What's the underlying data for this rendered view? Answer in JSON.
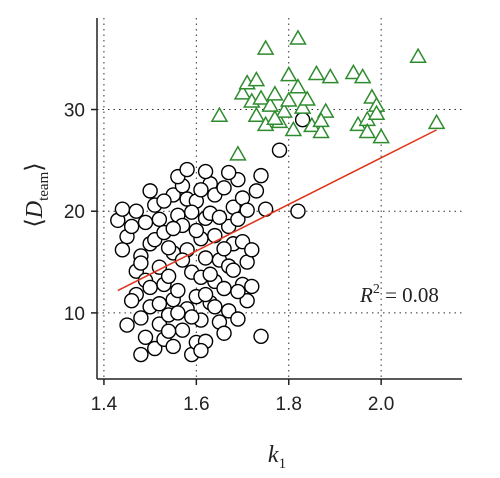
{
  "chart_data": {
    "type": "scatter",
    "xlabel": {
      "base": "k",
      "sub": "1"
    },
    "ylabel": {
      "base": "D",
      "sub": "team",
      "open": "⟨",
      "close": "⟩"
    },
    "xlim": [
      1.385,
      2.175
    ],
    "ylim": [
      3.5,
      39.0
    ],
    "xticks": [
      1.4,
      1.6,
      1.8,
      2.0
    ],
    "xtick_labels": [
      "1.4",
      "1.6",
      "1.8",
      "2.0"
    ],
    "yticks": [
      10,
      20,
      30
    ],
    "ytick_labels": [
      "10",
      "20",
      "30"
    ],
    "grid": "dotted",
    "annotation": {
      "base": "R",
      "sup": "2",
      "text": " = 0.08"
    },
    "colors": {
      "circles": "#000000",
      "triangles": "#2e8b2e",
      "fit": "#e0341a",
      "axes": "#222222"
    },
    "fit_line": {
      "x": [
        1.43,
        2.12
      ],
      "y": [
        12.2,
        28.0
      ]
    },
    "series": [
      {
        "marker": "circle",
        "points": [
          [
            1.43,
            19.1
          ],
          [
            1.44,
            20.2
          ],
          [
            1.45,
            17.5
          ],
          [
            1.46,
            18.5
          ],
          [
            1.44,
            16.2
          ],
          [
            1.47,
            14.1
          ],
          [
            1.45,
            8.8
          ],
          [
            1.48,
            9.5
          ],
          [
            1.47,
            11.8
          ],
          [
            1.49,
            13.2
          ],
          [
            1.48,
            15.6
          ],
          [
            1.5,
            16.8
          ],
          [
            1.49,
            18.9
          ],
          [
            1.51,
            20.6
          ],
          [
            1.5,
            22.0
          ],
          [
            1.52,
            19.2
          ],
          [
            1.51,
            17.2
          ],
          [
            1.52,
            14.5
          ],
          [
            1.53,
            12.8
          ],
          [
            1.5,
            10.6
          ],
          [
            1.52,
            8.9
          ],
          [
            1.49,
            7.6
          ],
          [
            1.48,
            5.9
          ],
          [
            1.51,
            6.5
          ],
          [
            1.53,
            7.4
          ],
          [
            1.54,
            9.8
          ],
          [
            1.55,
            11.3
          ],
          [
            1.54,
            13.6
          ],
          [
            1.55,
            15.9
          ],
          [
            1.53,
            17.9
          ],
          [
            1.56,
            19.6
          ],
          [
            1.55,
            21.6
          ],
          [
            1.57,
            22.5
          ],
          [
            1.56,
            23.4
          ],
          [
            1.58,
            21.2
          ],
          [
            1.57,
            18.6
          ],
          [
            1.58,
            16.2
          ],
          [
            1.59,
            14.0
          ],
          [
            1.56,
            12.2
          ],
          [
            1.58,
            10.4
          ],
          [
            1.57,
            8.3
          ],
          [
            1.55,
            6.7
          ],
          [
            1.59,
            5.9
          ],
          [
            1.6,
            7.1
          ],
          [
            1.61,
            9.3
          ],
          [
            1.6,
            11.6
          ],
          [
            1.61,
            13.5
          ],
          [
            1.62,
            15.4
          ],
          [
            1.61,
            17.3
          ],
          [
            1.62,
            19.3
          ],
          [
            1.6,
            21.0
          ],
          [
            1.63,
            22.7
          ],
          [
            1.62,
            23.9
          ],
          [
            1.64,
            21.6
          ],
          [
            1.63,
            19.8
          ],
          [
            1.64,
            17.6
          ],
          [
            1.65,
            15.2
          ],
          [
            1.64,
            13.1
          ],
          [
            1.63,
            11.0
          ],
          [
            1.65,
            9.1
          ],
          [
            1.62,
            7.2
          ],
          [
            1.66,
            8.0
          ],
          [
            1.67,
            10.2
          ],
          [
            1.66,
            12.4
          ],
          [
            1.67,
            14.6
          ],
          [
            1.68,
            16.8
          ],
          [
            1.67,
            18.5
          ],
          [
            1.68,
            20.4
          ],
          [
            1.66,
            22.3
          ],
          [
            1.69,
            23.1
          ],
          [
            1.7,
            21.3
          ],
          [
            1.69,
            19.2
          ],
          [
            1.7,
            17.0
          ],
          [
            1.71,
            15.0
          ],
          [
            1.7,
            12.8
          ],
          [
            1.71,
            11.2
          ],
          [
            1.69,
            9.4
          ],
          [
            1.72,
            12.6
          ],
          [
            1.73,
            22.0
          ],
          [
            1.74,
            23.5
          ],
          [
            1.71,
            20.1
          ],
          [
            1.46,
            11.2
          ],
          [
            1.47,
            20.0
          ],
          [
            1.53,
            21.0
          ],
          [
            1.58,
            24.1
          ],
          [
            1.54,
            16.4
          ],
          [
            1.59,
            9.6
          ],
          [
            1.61,
            6.3
          ],
          [
            1.56,
            10.0
          ],
          [
            1.6,
            18.1
          ],
          [
            1.65,
            19.4
          ],
          [
            1.68,
            14.2
          ],
          [
            1.63,
            13.8
          ],
          [
            1.52,
            10.9
          ],
          [
            1.57,
            15.2
          ],
          [
            1.62,
            11.8
          ],
          [
            1.72,
            16.2
          ],
          [
            1.74,
            7.7
          ],
          [
            1.75,
            20.2
          ],
          [
            1.78,
            26.0
          ],
          [
            1.82,
            20.0
          ],
          [
            1.83,
            29.0
          ],
          [
            1.5,
            12.5
          ],
          [
            1.55,
            18.3
          ],
          [
            1.66,
            16.3
          ],
          [
            1.59,
            19.9
          ],
          [
            1.64,
            10.6
          ],
          [
            1.48,
            14.9
          ],
          [
            1.69,
            12.1
          ],
          [
            1.54,
            8.2
          ],
          [
            1.61,
            22.1
          ],
          [
            1.67,
            23.8
          ]
        ]
      },
      {
        "marker": "triangle",
        "points": [
          [
            1.65,
            29.4
          ],
          [
            1.69,
            25.6
          ],
          [
            1.7,
            31.6
          ],
          [
            1.71,
            32.6
          ],
          [
            1.72,
            30.8
          ],
          [
            1.73,
            29.4
          ],
          [
            1.74,
            31.1
          ],
          [
            1.75,
            28.5
          ],
          [
            1.76,
            30.4
          ],
          [
            1.77,
            31.5
          ],
          [
            1.78,
            28.8
          ],
          [
            1.79,
            29.8
          ],
          [
            1.8,
            30.9
          ],
          [
            1.81,
            28.0
          ],
          [
            1.82,
            32.2
          ],
          [
            1.83,
            30.2
          ],
          [
            1.84,
            31.0
          ],
          [
            1.85,
            28.4
          ],
          [
            1.86,
            33.5
          ],
          [
            1.87,
            27.8
          ],
          [
            1.88,
            29.8
          ],
          [
            1.89,
            33.2
          ],
          [
            1.75,
            36.0
          ],
          [
            1.82,
            37.0
          ],
          [
            1.94,
            33.6
          ],
          [
            1.96,
            33.2
          ],
          [
            1.95,
            28.5
          ],
          [
            1.97,
            29.0
          ],
          [
            1.98,
            31.2
          ],
          [
            1.99,
            30.4
          ],
          [
            2.0,
            27.3
          ],
          [
            1.99,
            29.6
          ],
          [
            2.08,
            35.2
          ],
          [
            2.12,
            28.7
          ],
          [
            1.97,
            27.8
          ],
          [
            1.73,
            32.9
          ],
          [
            1.77,
            29.1
          ],
          [
            1.8,
            33.4
          ],
          [
            1.87,
            28.9
          ]
        ]
      }
    ]
  }
}
